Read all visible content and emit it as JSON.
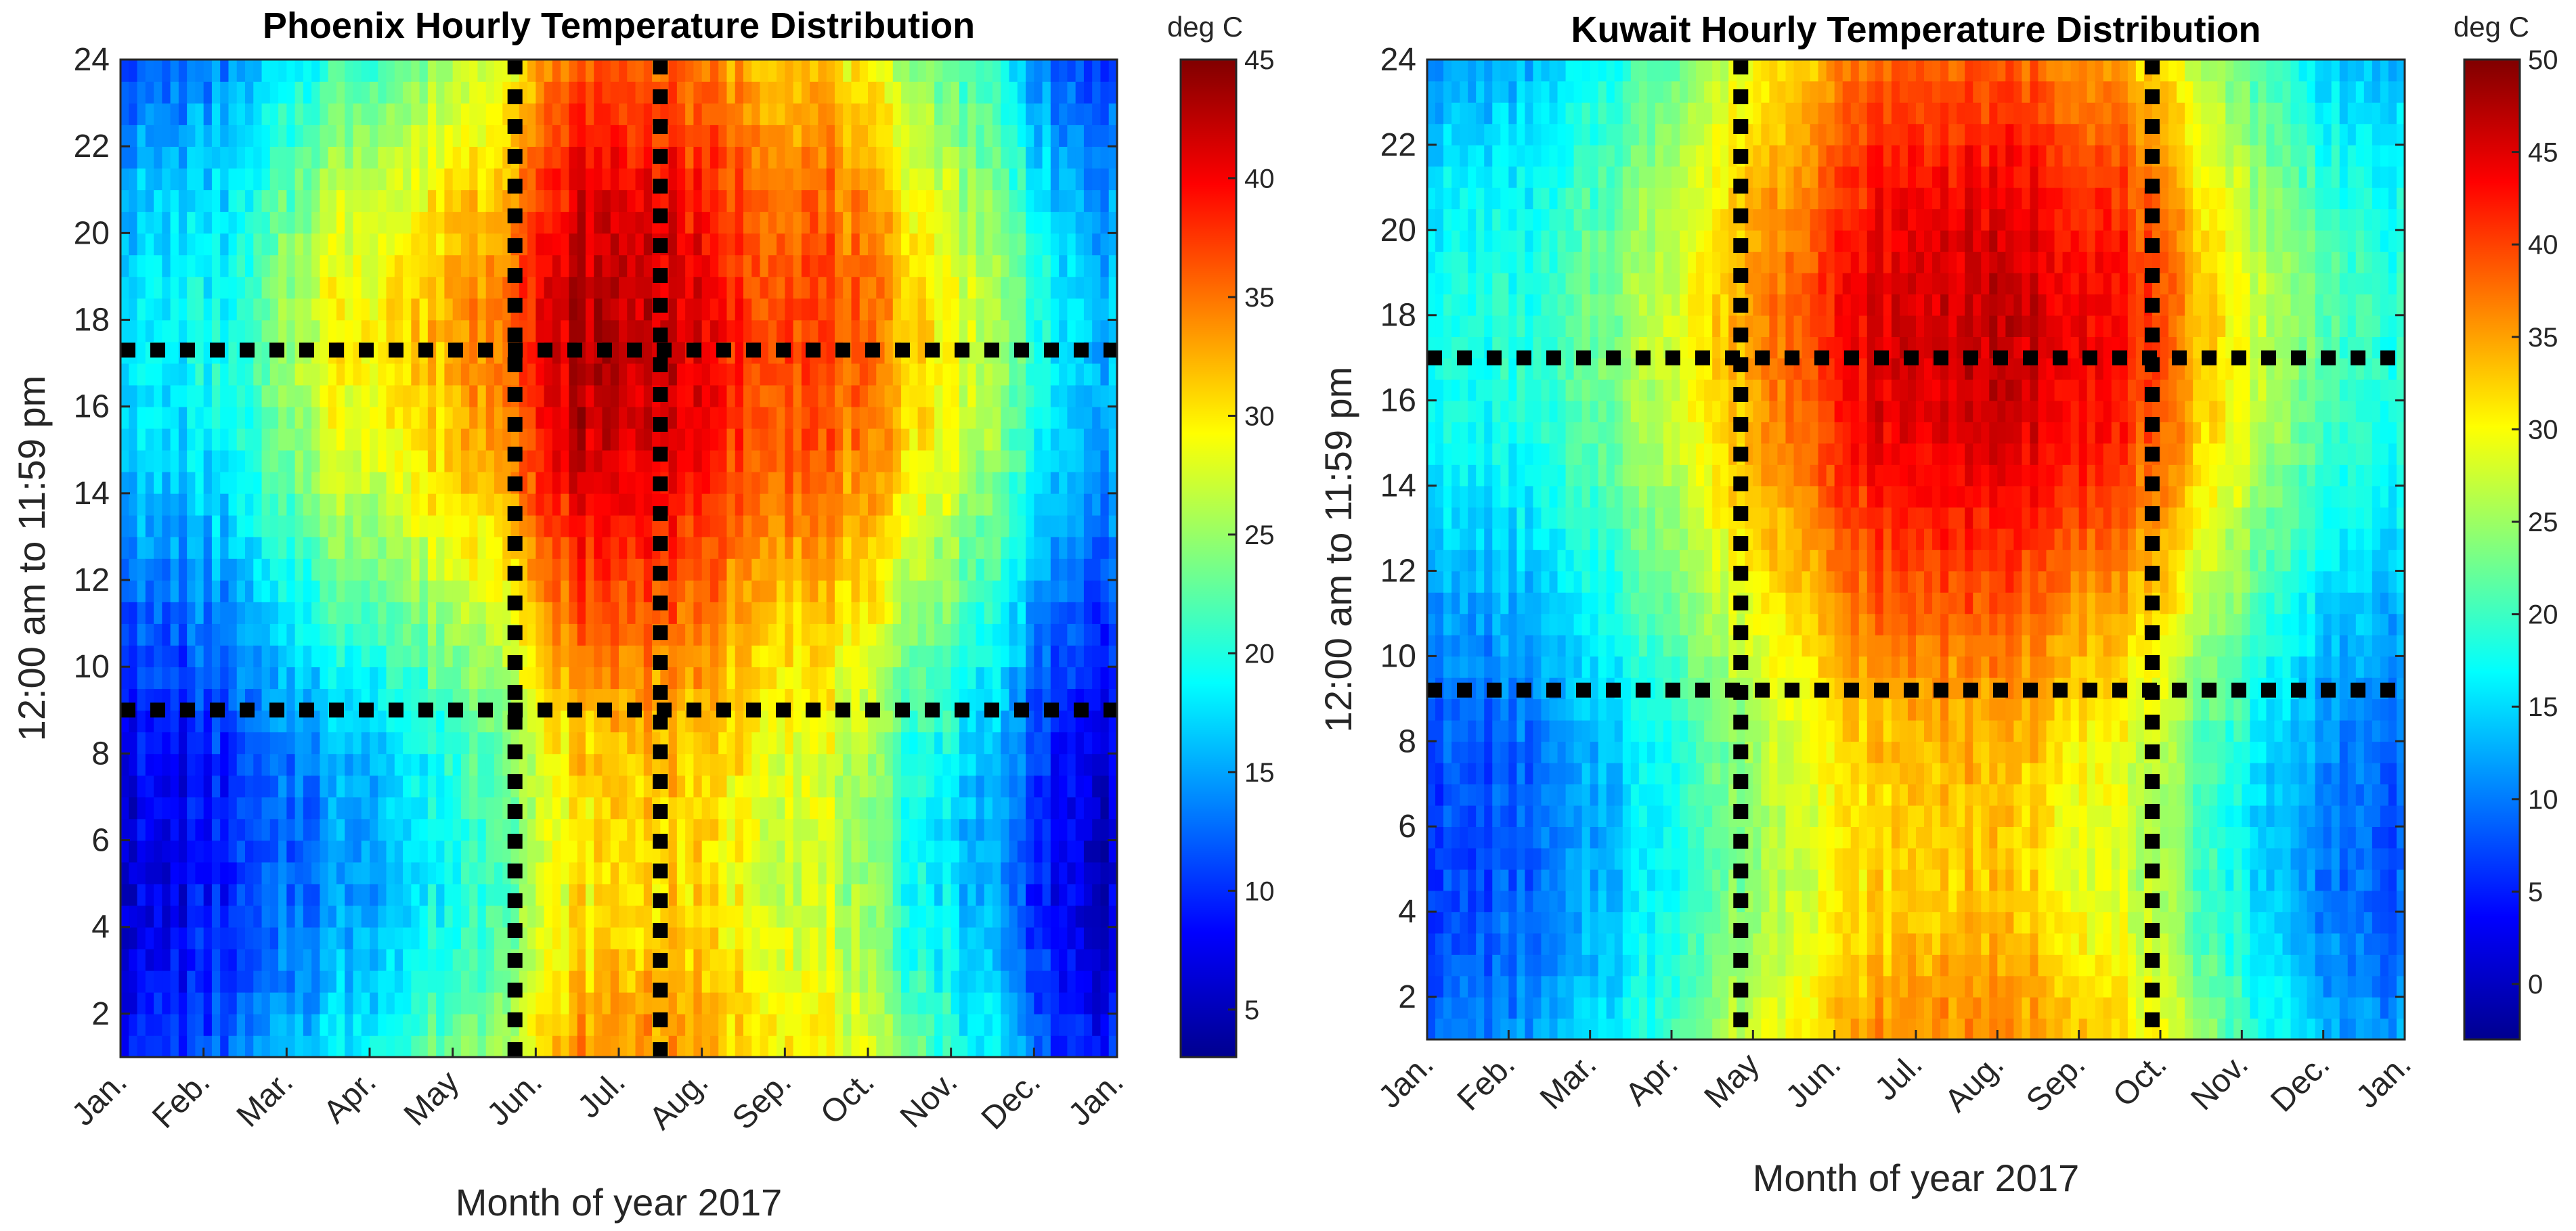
{
  "chart_data": [
    {
      "type": "heatmap",
      "id": "phoenix",
      "title": "Phoenix Hourly Temperature Distribution",
      "xlabel": "Month of year 2017",
      "ylabel": "12:00 am to 11:59 pm",
      "x_ticks": [
        "Jan.",
        "Feb.",
        "Mar.",
        "Apr.",
        "May",
        "Jun.",
        "Jul.",
        "Aug.",
        "Sep.",
        "Oct.",
        "Nov.",
        "Dec.",
        "Jan."
      ],
      "x_range_months": [
        0,
        12
      ],
      "y_ticks": [
        2,
        4,
        6,
        8,
        10,
        12,
        14,
        16,
        18,
        20,
        22,
        24
      ],
      "y_range": [
        1,
        24
      ],
      "colorbar": {
        "label": "deg C",
        "range": [
          3,
          45
        ],
        "ticks": [
          5,
          10,
          15,
          20,
          25,
          30,
          35,
          40,
          45
        ]
      },
      "dotted_lines": {
        "horizontal_hours": [
          9.0,
          17.3
        ],
        "vertical_months": [
          4.75,
          6.5
        ]
      },
      "month_temps": [
        {
          "month": "Jan.",
          "min": 7,
          "max": 18
        },
        {
          "month": "Feb.",
          "min": 10,
          "max": 20
        },
        {
          "month": "Mar.",
          "min": 14,
          "max": 29
        },
        {
          "month": "Apr.",
          "min": 17,
          "max": 31
        },
        {
          "month": "May",
          "min": 22,
          "max": 35
        },
        {
          "month": "Jun.",
          "min": 30,
          "max": 43
        },
        {
          "month": "Jul.",
          "min": 31,
          "max": 42
        },
        {
          "month": "Aug.",
          "min": 29,
          "max": 38
        },
        {
          "month": "Sep.",
          "min": 27,
          "max": 37
        },
        {
          "month": "Oct.",
          "min": 20,
          "max": 32
        },
        {
          "month": "Nov.",
          "min": 15,
          "max": 26
        },
        {
          "month": "Dec.",
          "min": 6,
          "max": 16
        }
      ]
    },
    {
      "type": "heatmap",
      "id": "kuwait",
      "title": "Kuwait Hourly Temperature Distribution",
      "xlabel": "Month of year 2017",
      "ylabel": "12:00 am to 11:59 pm",
      "x_ticks": [
        "Jan.",
        "Feb.",
        "Mar.",
        "Apr.",
        "May",
        "Jun.",
        "Jul.",
        "Aug.",
        "Sep.",
        "Oct.",
        "Nov.",
        "Dec.",
        "Jan."
      ],
      "x_range_months": [
        0,
        12
      ],
      "y_ticks": [
        2,
        4,
        6,
        8,
        10,
        12,
        14,
        16,
        18,
        20,
        22,
        24
      ],
      "y_range": [
        1,
        24
      ],
      "colorbar": {
        "label": "deg C",
        "range": [
          -3,
          50
        ],
        "ticks": [
          0,
          5,
          10,
          15,
          20,
          25,
          30,
          35,
          40,
          45,
          50
        ]
      },
      "dotted_lines": {
        "horizontal_hours": [
          9.2,
          17.0
        ],
        "vertical_months": [
          3.85,
          8.9
        ]
      },
      "month_temps": [
        {
          "month": "Jan.",
          "min": 7,
          "max": 18
        },
        {
          "month": "Feb.",
          "min": 9,
          "max": 19
        },
        {
          "month": "Mar.",
          "min": 15,
          "max": 25
        },
        {
          "month": "Apr.",
          "min": 21,
          "max": 32
        },
        {
          "month": "May",
          "min": 28,
          "max": 39
        },
        {
          "month": "Jun.",
          "min": 32,
          "max": 45
        },
        {
          "month": "Jul.",
          "min": 33,
          "max": 46
        },
        {
          "month": "Aug.",
          "min": 32,
          "max": 46
        },
        {
          "month": "Sep.",
          "min": 28,
          "max": 43
        },
        {
          "month": "Oct.",
          "min": 21,
          "max": 34
        },
        {
          "month": "Nov.",
          "min": 13,
          "max": 25
        },
        {
          "month": "Dec.",
          "min": 8,
          "max": 19
        }
      ]
    }
  ]
}
